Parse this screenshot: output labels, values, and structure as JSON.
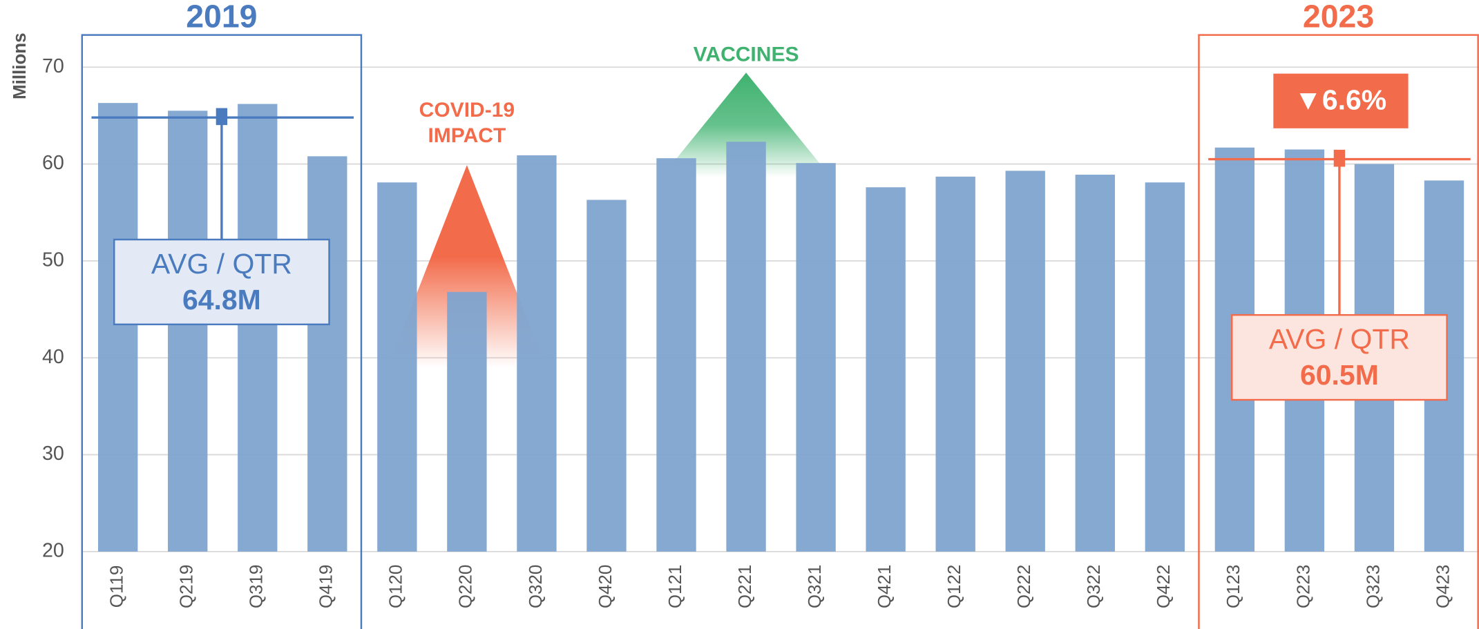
{
  "chart_data": {
    "type": "bar",
    "y_label": "Millions",
    "categories": [
      "Q119",
      "Q219",
      "Q319",
      "Q419",
      "Q120",
      "Q220",
      "Q320",
      "Q420",
      "Q121",
      "Q221",
      "Q321",
      "Q421",
      "Q122",
      "Q222",
      "Q322",
      "Q422",
      "Q123",
      "Q223",
      "Q323",
      "Q423"
    ],
    "values": [
      66.3,
      65.5,
      66.2,
      60.8,
      58.1,
      46.8,
      60.9,
      56.3,
      60.6,
      62.3,
      60.1,
      57.6,
      58.7,
      59.3,
      58.9,
      58.1,
      61.7,
      61.5,
      60.0,
      58.3
    ],
    "color": "#7fa4cf",
    "ylim": [
      20,
      74
    ],
    "yticks": [
      20,
      30,
      40,
      50,
      60,
      70
    ],
    "grid": true,
    "periods": [
      {
        "label": "2019",
        "color": "#4a7bbf",
        "avg_title": "AVG / QTR",
        "avg": 64.8,
        "avg_value_label": "64.8M"
      },
      {
        "label": "2023",
        "color": "#f26b4a",
        "avg_title": "AVG / QTR",
        "avg": 60.5,
        "avg_value_label": "60.5M",
        "change_label": "▼6.6%"
      }
    ],
    "annotations": [
      {
        "lines": [
          "COVID-19",
          "IMPACT"
        ],
        "color": "#f26b4a"
      },
      {
        "lines": [
          "VACCINES"
        ],
        "color": "#3fb26f"
      }
    ]
  }
}
